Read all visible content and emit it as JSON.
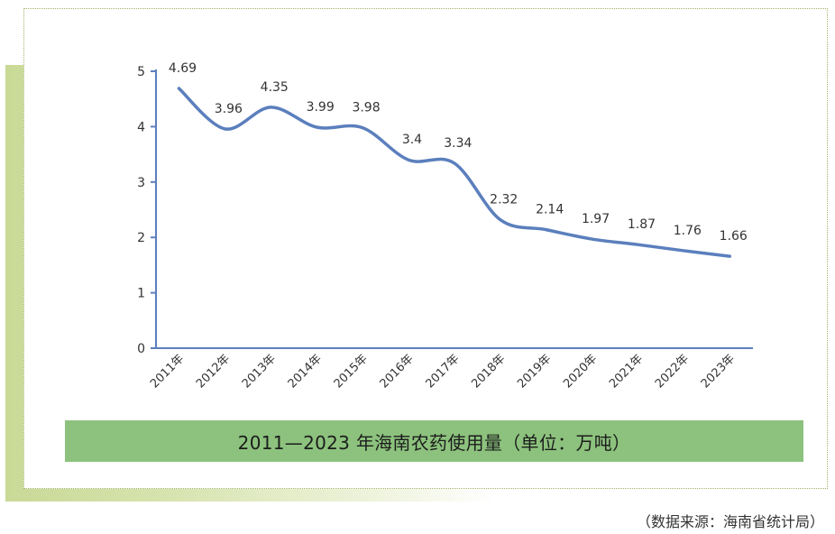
{
  "chart_data": {
    "type": "line",
    "title": "2011—2023 年海南农药使用量（单位：万吨）",
    "categories": [
      "2011年",
      "2012年",
      "2013年",
      "2014年",
      "2015年",
      "2016年",
      "2017年",
      "2018年",
      "2019年",
      "2020年",
      "2021年",
      "2022年",
      "2023年"
    ],
    "series": [
      {
        "name": "农药使用量",
        "values": [
          4.69,
          3.96,
          4.35,
          3.99,
          3.98,
          3.4,
          3.34,
          2.32,
          2.14,
          1.97,
          1.87,
          1.76,
          1.66
        ],
        "labels": [
          "4.69",
          "3.96",
          "4.35",
          "3.99",
          "3.98",
          "3.4",
          "3.34",
          "2.32",
          "2.14",
          "1.97",
          "1.87",
          "1.76",
          "1.66"
        ]
      }
    ],
    "ylim": [
      0,
      5
    ],
    "yticks": [
      0,
      1,
      2,
      3,
      4,
      5
    ],
    "grid": false,
    "xlabel": "",
    "ylabel": ""
  },
  "colors": {
    "line": "#5b7fbd",
    "axis": "#5b7fbd",
    "banner": "#8cc27d",
    "decoration": "#c9d996"
  },
  "source": "（数据来源：海南省统计局）"
}
